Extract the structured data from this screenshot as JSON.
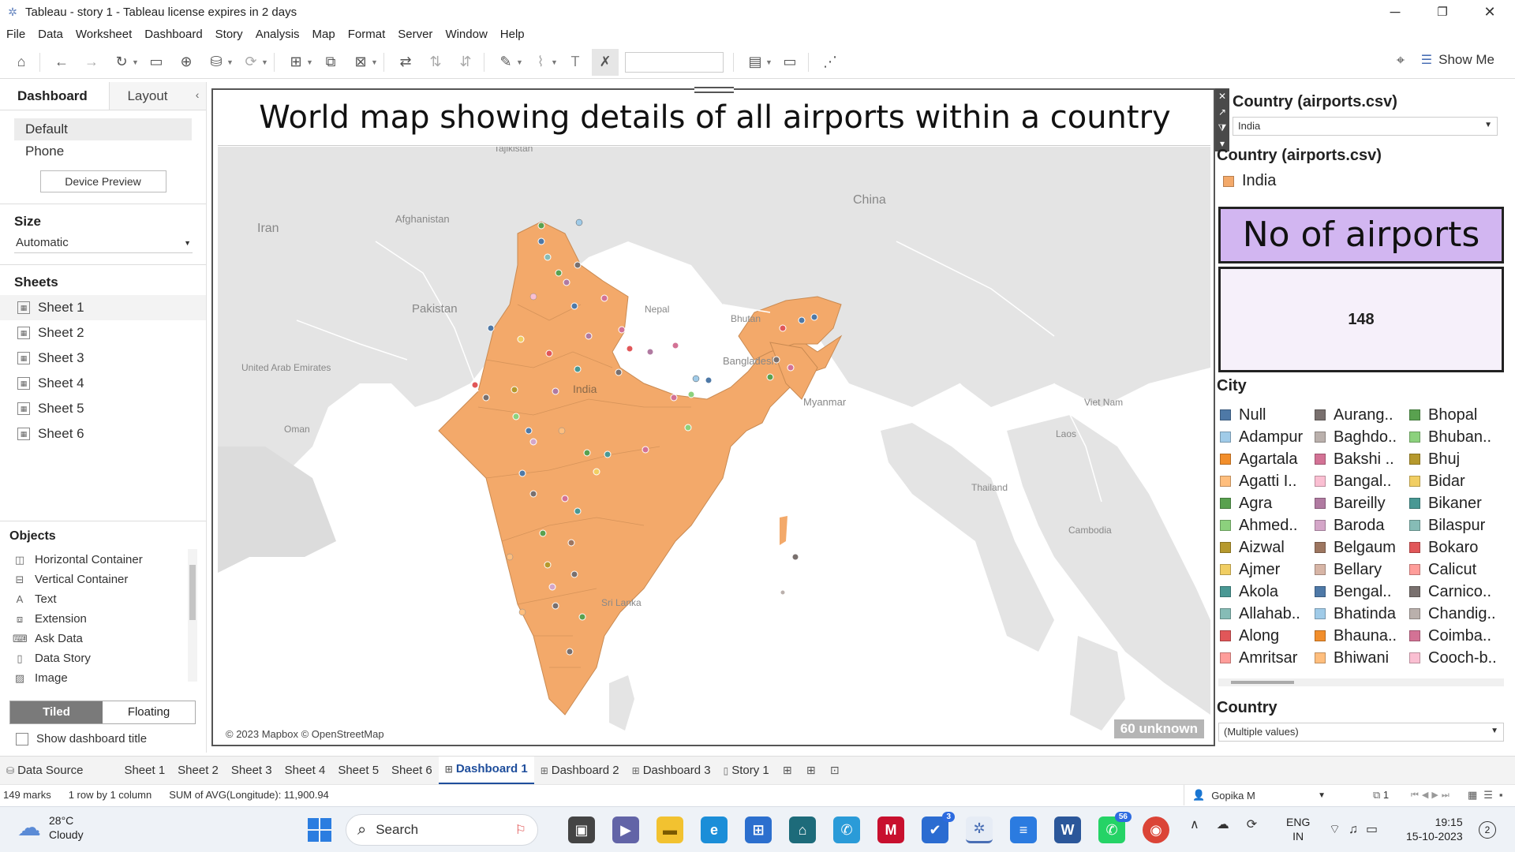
{
  "window": {
    "title": "Tableau - story 1 - Tableau license expires in 2 days",
    "minimize": "─",
    "restore": "❐",
    "close": "✕"
  },
  "menu": [
    {
      "label": "File"
    },
    {
      "label": "Data"
    },
    {
      "label": "Worksheet"
    },
    {
      "label": "Dashboard"
    },
    {
      "label": "Story"
    },
    {
      "label": "Analysis"
    },
    {
      "label": "Map"
    },
    {
      "label": "Format"
    },
    {
      "label": "Server"
    },
    {
      "label": "Window"
    },
    {
      "label": "Help"
    }
  ],
  "toolbar": {
    "show_me_label": "Show Me"
  },
  "left_panel": {
    "tab_dashboard": "Dashboard",
    "tab_layout": "Layout",
    "device_default": "Default",
    "device_phone": "Phone",
    "device_preview_btn": "Device Preview",
    "size_title": "Size",
    "size_value": "Automatic",
    "sheets_title": "Sheets",
    "sheets": [
      "Sheet 1",
      "Sheet 2",
      "Sheet 3",
      "Sheet 4",
      "Sheet 5",
      "Sheet 6"
    ],
    "objects_title": "Objects",
    "objects": [
      "Horizontal Container",
      "Vertical Container",
      "Text",
      "Extension",
      "Ask Data",
      "Data Story",
      "Image"
    ],
    "tiled_label": "Tiled",
    "floating_label": "Floating",
    "show_title_label": "Show dashboard title"
  },
  "dashboard": {
    "title": "World map showing details of all airports within a country",
    "map_credit": "© 2023 Mapbox © OpenStreetMap",
    "unknown_badge": "60 unknown",
    "map_labels": [
      "Tajikistan",
      "China",
      "Afghanistan",
      "Iran",
      "Pakistan",
      "Nepal",
      "Bhutan",
      "Bangladesh",
      "United Arab\nEmirates",
      "India",
      "Myanmar",
      "Viet Nam",
      "Oman",
      "Laos",
      "Thailand",
      "Cambodia",
      "Sri Lanka"
    ],
    "fill_color": "#f3a96a"
  },
  "right_panel": {
    "filter_title": "Country (airports.csv)",
    "filter_value": "India",
    "legend_title": "Country (airports.csv)",
    "legend_item": "India",
    "legend_color": "#f3a96a",
    "airports_header": "No of airports",
    "airports_value": "148",
    "city_title": "City",
    "cities": [
      {
        "name": "Null",
        "color": "#4e79a7"
      },
      {
        "name": "Aurang..",
        "color": "#79706e"
      },
      {
        "name": "Bhopal",
        "color": "#59a14f"
      },
      {
        "name": "Adampur",
        "color": "#a0cbe8"
      },
      {
        "name": "Baghdo..",
        "color": "#bab0ac"
      },
      {
        "name": "Bhuban..",
        "color": "#8cd17d"
      },
      {
        "name": "Agartala",
        "color": "#f28e2b"
      },
      {
        "name": "Bakshi ..",
        "color": "#d37295"
      },
      {
        "name": "Bhuj",
        "color": "#b6992d"
      },
      {
        "name": "Agatti I..",
        "color": "#ffbe7d"
      },
      {
        "name": "Bangal..",
        "color": "#fabfd2"
      },
      {
        "name": "Bidar",
        "color": "#f1ce63"
      },
      {
        "name": "Agra",
        "color": "#59a14f"
      },
      {
        "name": "Bareilly",
        "color": "#b07aa1"
      },
      {
        "name": "Bikaner",
        "color": "#499894"
      },
      {
        "name": "Ahmed..",
        "color": "#8cd17d"
      },
      {
        "name": "Baroda",
        "color": "#d4a6c8"
      },
      {
        "name": "Bilaspur",
        "color": "#86bcb6"
      },
      {
        "name": "Aizwal",
        "color": "#b6992d"
      },
      {
        "name": "Belgaum",
        "color": "#9d7660"
      },
      {
        "name": "Bokaro",
        "color": "#e15759"
      },
      {
        "name": "Ajmer",
        "color": "#f1ce63"
      },
      {
        "name": "Bellary",
        "color": "#d7b5a6"
      },
      {
        "name": "Calicut",
        "color": "#ff9d9a"
      },
      {
        "name": "Akola",
        "color": "#499894"
      },
      {
        "name": "Bengal..",
        "color": "#4e79a7"
      },
      {
        "name": "Carnico..",
        "color": "#79706e"
      },
      {
        "name": "Allahab..",
        "color": "#86bcb6"
      },
      {
        "name": "Bhatinda",
        "color": "#a0cbe8"
      },
      {
        "name": "Chandig..",
        "color": "#bab0ac"
      },
      {
        "name": "Along",
        "color": "#e15759"
      },
      {
        "name": "Bhauna..",
        "color": "#f28e2b"
      },
      {
        "name": "Coimba..",
        "color": "#d37295"
      },
      {
        "name": "Amritsar",
        "color": "#ff9d9a"
      },
      {
        "name": "Bhiwani",
        "color": "#ffbe7d"
      },
      {
        "name": "Cooch-b..",
        "color": "#fabfd2"
      }
    ],
    "country_title": "Country",
    "country_value": "(Multiple values)"
  },
  "sheet_tabs": {
    "data_source": "Data Source",
    "tabs": [
      "Sheet 1",
      "Sheet 2",
      "Sheet 3",
      "Sheet 4",
      "Sheet 5",
      "Sheet 6"
    ],
    "dashboards": [
      "Dashboard 1",
      "Dashboard 2",
      "Dashboard 3"
    ],
    "story": "Story 1"
  },
  "status": {
    "marks": "149 marks",
    "rows_cols": "1 row by 1 column",
    "sum": "SUM of AVG(Longitude): 11,900.94",
    "user": "Gopika M",
    "page_count": "1"
  },
  "taskbar": {
    "temp": "28°C",
    "condition": "Cloudy",
    "search_label": "Search",
    "lang_1": "ENG",
    "lang_2": "IN",
    "time": "19:15",
    "date": "15-10-2023",
    "notif_count": "2",
    "badge_3": "3",
    "badge_56": "56"
  }
}
